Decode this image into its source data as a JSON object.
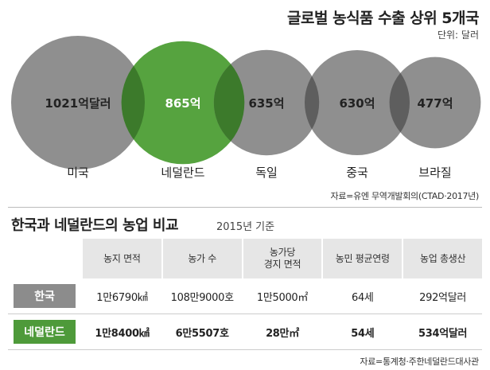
{
  "header": {
    "title": "글로벌 농식품 수출 상위 5개국",
    "unit": "단위: 달러"
  },
  "chart_data": {
    "type": "bubble",
    "categories": [
      "미국",
      "네덜란드",
      "독일",
      "중국",
      "브라질"
    ],
    "values": [
      1021,
      865,
      635,
      630,
      477
    ],
    "value_labels": [
      "1021억달러",
      "865억",
      "635억",
      "630억",
      "477억"
    ],
    "highlight_index": 1,
    "colors": {
      "default": "#8f8f8f",
      "highlight": "#56a33f",
      "default_dark": "#5e5e5e",
      "highlight_dark": "#3c7a2b"
    }
  },
  "source1": "자료=유엔 무역개발회의(CTAD·2017년)",
  "comparison": {
    "title": "한국과 네덜란드의 농업 비교",
    "subtitle": "2015년 기준",
    "columns": [
      {
        "line1": "농지 면적",
        "line2": ""
      },
      {
        "line1": "농가 수",
        "line2": ""
      },
      {
        "line1": "농가당",
        "line2": "경지 면적"
      },
      {
        "line1": "농민 평균연령",
        "line2": ""
      },
      {
        "line1": "농업 총생산",
        "line2": ""
      }
    ],
    "rows": [
      {
        "label": "한국",
        "values": [
          "1만6790㎢",
          "108만9000호",
          "1만5000㎡",
          "64세",
          "292억달러"
        ]
      },
      {
        "label": "네덜란드",
        "values": [
          "1만8400㎢",
          "6만5507호",
          "28만㎡",
          "54세",
          "534억달러"
        ]
      }
    ]
  },
  "source2": "자료=통계청·주한네덜란드대사관"
}
